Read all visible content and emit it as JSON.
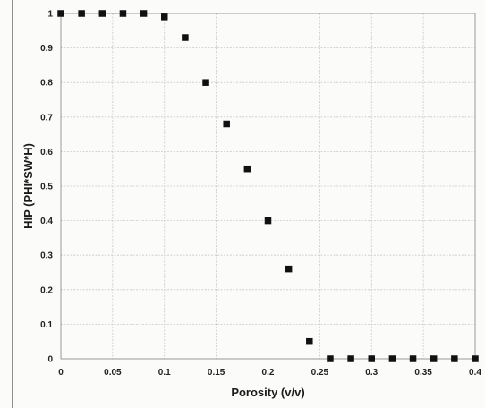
{
  "chart_data": {
    "type": "scatter",
    "title": "",
    "xlabel": "Porosity (v/v)",
    "ylabel": "HIP (PHI*SW*H)",
    "xlim": [
      0,
      0.4
    ],
    "ylim": [
      0,
      1
    ],
    "x_ticks": [
      0,
      0.05,
      0.1,
      0.15,
      0.2,
      0.25,
      0.3,
      0.35,
      0.4
    ],
    "x_tick_labels": [
      "0",
      "0.05",
      "0.1",
      "0.15",
      "0.2",
      "0.25",
      "0.3",
      "0.35",
      "0.4"
    ],
    "y_ticks": [
      0,
      0.1,
      0.2,
      0.3,
      0.4,
      0.5,
      0.6,
      0.7,
      0.8,
      0.9,
      1
    ],
    "y_tick_labels": [
      "0",
      "0.1",
      "0.2",
      "0.3",
      "0.4",
      "0.5",
      "0.6",
      "0.7",
      "0.8",
      "0.9",
      "1"
    ],
    "grid": true,
    "marker_color": "#111111",
    "x": [
      0,
      0.02,
      0.04,
      0.06,
      0.08,
      0.1,
      0.12,
      0.14,
      0.16,
      0.18,
      0.2,
      0.22,
      0.24,
      0.26,
      0.28,
      0.3,
      0.32,
      0.34,
      0.36,
      0.38,
      0.4
    ],
    "y": [
      1,
      1,
      1,
      1,
      1,
      0.99,
      0.93,
      0.8,
      0.68,
      0.55,
      0.4,
      0.26,
      0.05,
      0,
      0,
      0,
      0,
      0,
      0,
      0,
      0
    ]
  }
}
